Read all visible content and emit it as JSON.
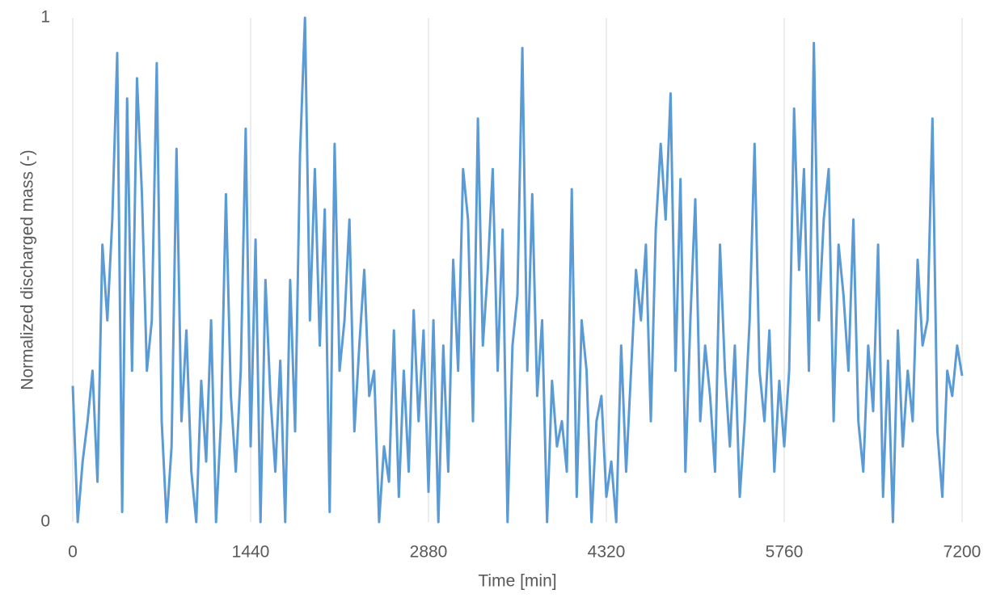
{
  "chart_data": {
    "type": "line",
    "x_label": "Time [min]",
    "y_label": "Normalized discharged mass (-)",
    "x": [
      0,
      40,
      80,
      120,
      160,
      200,
      240,
      280,
      320,
      360,
      400,
      440,
      480,
      520,
      560,
      600,
      640,
      680,
      720,
      760,
      800,
      840,
      880,
      920,
      960,
      1000,
      1040,
      1080,
      1120,
      1160,
      1200,
      1240,
      1280,
      1320,
      1360,
      1400,
      1440,
      1480,
      1520,
      1560,
      1600,
      1640,
      1680,
      1720,
      1760,
      1800,
      1840,
      1880,
      1920,
      1960,
      2000,
      2040,
      2080,
      2120,
      2160,
      2200,
      2240,
      2280,
      2320,
      2360,
      2400,
      2440,
      2480,
      2520,
      2560,
      2600,
      2640,
      2680,
      2720,
      2760,
      2800,
      2840,
      2880,
      2920,
      2960,
      3000,
      3040,
      3080,
      3120,
      3160,
      3200,
      3240,
      3280,
      3320,
      3360,
      3400,
      3440,
      3480,
      3520,
      3560,
      3600,
      3640,
      3680,
      3720,
      3760,
      3800,
      3840,
      3880,
      3920,
      3960,
      4000,
      4040,
      4080,
      4120,
      4160,
      4200,
      4240,
      4280,
      4320,
      4360,
      4400,
      4440,
      4480,
      4520,
      4560,
      4600,
      4640,
      4680,
      4720,
      4760,
      4800,
      4840,
      4880,
      4920,
      4960,
      5000,
      5040,
      5080,
      5120,
      5160,
      5200,
      5240,
      5280,
      5320,
      5360,
      5400,
      5440,
      5480,
      5520,
      5560,
      5600,
      5640,
      5680,
      5720,
      5760,
      5800,
      5840,
      5880,
      5920,
      5960,
      6000,
      6040,
      6080,
      6120,
      6160,
      6200,
      6240,
      6280,
      6320,
      6360,
      6400,
      6440,
      6480,
      6520,
      6560,
      6600,
      6640,
      6680,
      6720,
      6760,
      6800,
      6840,
      6880,
      6920,
      6960,
      7000,
      7040,
      7080,
      7120,
      7160,
      7200
    ],
    "series": [
      {
        "name": "Normalized discharged mass",
        "color": "#5b9bd5",
        "values": [
          0.27,
          0,
          0.12,
          0.2,
          0.3,
          0.08,
          0.55,
          0.4,
          0.6,
          0.93,
          0.02,
          0.84,
          0.3,
          0.88,
          0.65,
          0.3,
          0.4,
          0.91,
          0.2,
          0,
          0.15,
          0.74,
          0.2,
          0.38,
          0.1,
          0,
          0.28,
          0.12,
          0.4,
          0,
          0.2,
          0.65,
          0.25,
          0.1,
          0.3,
          0.78,
          0.15,
          0.56,
          0,
          0.48,
          0.25,
          0.1,
          0.32,
          0,
          0.48,
          0.18,
          0.73,
          1.0,
          0.4,
          0.7,
          0.35,
          0.62,
          0.02,
          0.75,
          0.3,
          0.4,
          0.6,
          0.18,
          0.35,
          0.5,
          0.25,
          0.3,
          0,
          0.15,
          0.08,
          0.38,
          0.05,
          0.3,
          0.1,
          0.42,
          0.2,
          0.38,
          0.06,
          0.4,
          0,
          0.35,
          0.1,
          0.52,
          0.3,
          0.7,
          0.6,
          0.2,
          0.8,
          0.35,
          0.5,
          0.7,
          0.3,
          0.58,
          0,
          0.35,
          0.45,
          0.94,
          0.3,
          0.65,
          0.25,
          0.4,
          0,
          0.28,
          0.15,
          0.2,
          0.1,
          0.66,
          0.05,
          0.4,
          0.3,
          0,
          0.2,
          0.25,
          0.05,
          0.12,
          0,
          0.35,
          0.1,
          0.3,
          0.5,
          0.4,
          0.55,
          0.2,
          0.58,
          0.75,
          0.6,
          0.85,
          0.3,
          0.68,
          0.1,
          0.4,
          0.64,
          0.2,
          0.35,
          0.25,
          0.1,
          0.55,
          0.3,
          0.15,
          0.35,
          0.05,
          0.2,
          0.4,
          0.75,
          0.3,
          0.2,
          0.38,
          0.1,
          0.28,
          0.15,
          0.3,
          0.82,
          0.5,
          0.7,
          0.3,
          0.95,
          0.4,
          0.6,
          0.7,
          0.2,
          0.55,
          0.45,
          0.3,
          0.6,
          0.2,
          0.1,
          0.35,
          0.22,
          0.55,
          0.05,
          0.32,
          0,
          0.38,
          0.15,
          0.3,
          0.2,
          0.52,
          0.35,
          0.4,
          0.8,
          0.18,
          0.05,
          0.3,
          0.25,
          0.35,
          0.29
        ]
      }
    ],
    "xlim": [
      0,
      7200
    ],
    "xticks": [
      0,
      1440,
      2880,
      4320,
      5760,
      7200
    ],
    "ylim": [
      0,
      1
    ],
    "yticks": [
      0,
      1
    ],
    "grid": true
  }
}
